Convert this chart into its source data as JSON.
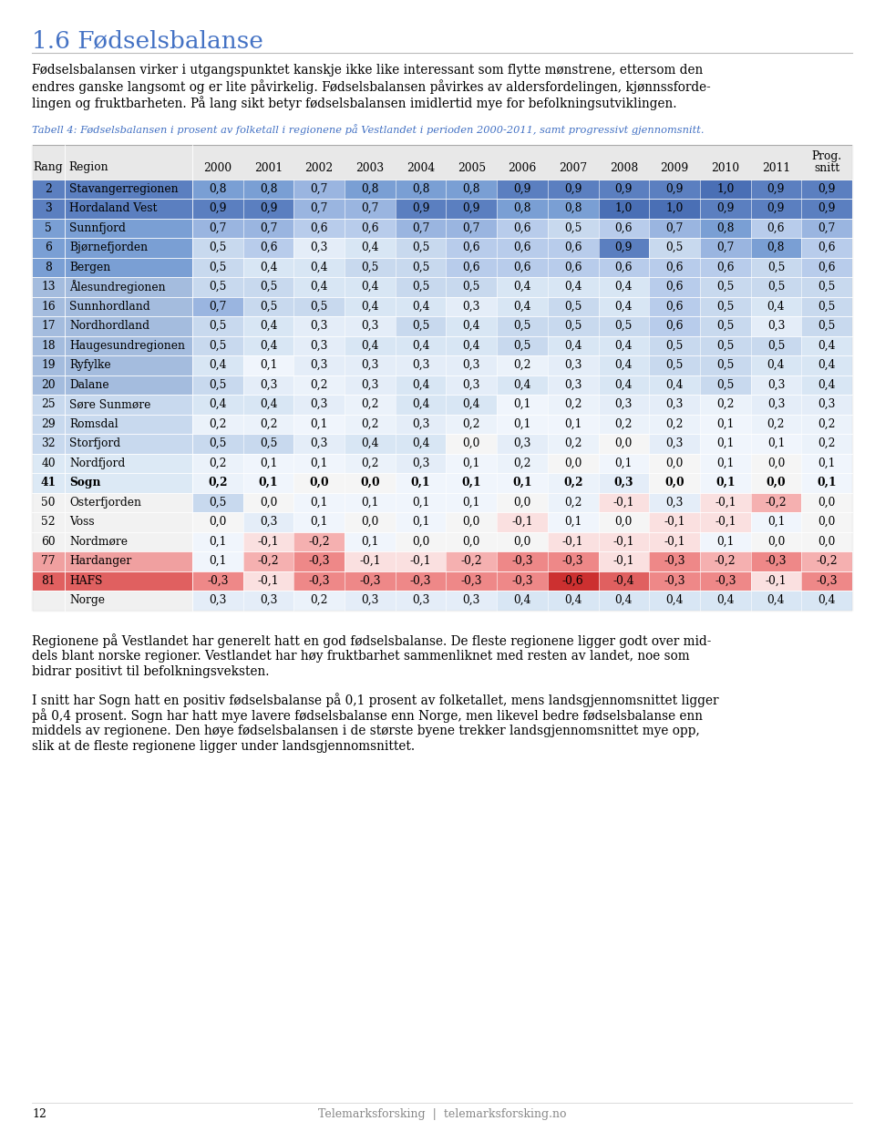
{
  "title": "1.6 Fødselsbalanse",
  "intro_lines": [
    "Fødselsbalansen virker i utgangspunktet kanskje ikke like interessant som flytte mønstrene, ettersom den",
    "endres ganske langsomt og er lite påvirkelig. Fødselsbalansen påvirkes av aldersfordelingen, kjønnssforde-",
    "lingen og fruktbarheten. På lang sikt betyr fødselsbalansen imidlertid mye for befolkningsutviklingen."
  ],
  "table_caption": "Tabell 4: Fødselsbalansen i prosent av folketall i regionene på Vestlandet i perioden 2000-2011, samt progressivt gjennomsnitt.",
  "rows": [
    {
      "rang": "2",
      "region": "Stavangerregionen",
      "bold": false,
      "values": [
        0.8,
        0.8,
        0.7,
        0.8,
        0.8,
        0.8,
        0.9,
        0.9,
        0.9,
        0.9,
        1.0,
        0.9,
        0.9
      ]
    },
    {
      "rang": "3",
      "region": "Hordaland Vest",
      "bold": false,
      "values": [
        0.9,
        0.9,
        0.7,
        0.7,
        0.9,
        0.9,
        0.8,
        0.8,
        1.0,
        1.0,
        0.9,
        0.9,
        0.9
      ]
    },
    {
      "rang": "5",
      "region": "Sunnfjord",
      "bold": false,
      "values": [
        0.7,
        0.7,
        0.6,
        0.6,
        0.7,
        0.7,
        0.6,
        0.5,
        0.6,
        0.7,
        0.8,
        0.6,
        0.7
      ]
    },
    {
      "rang": "6",
      "region": "Bjørnefjorden",
      "bold": false,
      "values": [
        0.5,
        0.6,
        0.3,
        0.4,
        0.5,
        0.6,
        0.6,
        0.6,
        0.9,
        0.5,
        0.7,
        0.8,
        0.6
      ]
    },
    {
      "rang": "8",
      "region": "Bergen",
      "bold": false,
      "values": [
        0.5,
        0.4,
        0.4,
        0.5,
        0.5,
        0.6,
        0.6,
        0.6,
        0.6,
        0.6,
        0.6,
        0.5,
        0.6
      ]
    },
    {
      "rang": "13",
      "region": "Ålesundregionen",
      "bold": false,
      "values": [
        0.5,
        0.5,
        0.4,
        0.4,
        0.5,
        0.5,
        0.4,
        0.4,
        0.4,
        0.6,
        0.5,
        0.5,
        0.5
      ]
    },
    {
      "rang": "16",
      "region": "Sunnhordland",
      "bold": false,
      "values": [
        0.7,
        0.5,
        0.5,
        0.4,
        0.4,
        0.3,
        0.4,
        0.5,
        0.4,
        0.6,
        0.5,
        0.4,
        0.5
      ]
    },
    {
      "rang": "17",
      "region": "Nordhordland",
      "bold": false,
      "values": [
        0.5,
        0.4,
        0.3,
        0.3,
        0.5,
        0.4,
        0.5,
        0.5,
        0.5,
        0.6,
        0.5,
        0.3,
        0.5
      ]
    },
    {
      "rang": "18",
      "region": "Haugesundregionen",
      "bold": false,
      "values": [
        0.5,
        0.4,
        0.3,
        0.4,
        0.4,
        0.4,
        0.5,
        0.4,
        0.4,
        0.5,
        0.5,
        0.5,
        0.4
      ]
    },
    {
      "rang": "19",
      "region": "Ryfylke",
      "bold": false,
      "values": [
        0.4,
        0.1,
        0.3,
        0.3,
        0.3,
        0.3,
        0.2,
        0.3,
        0.4,
        0.5,
        0.5,
        0.4,
        0.4
      ]
    },
    {
      "rang": "20",
      "region": "Dalane",
      "bold": false,
      "values": [
        0.5,
        0.3,
        0.2,
        0.3,
        0.4,
        0.3,
        0.4,
        0.3,
        0.4,
        0.4,
        0.5,
        0.3,
        0.4
      ]
    },
    {
      "rang": "25",
      "region": "Søre Sunmøre",
      "bold": false,
      "values": [
        0.4,
        0.4,
        0.3,
        0.2,
        0.4,
        0.4,
        0.1,
        0.2,
        0.3,
        0.3,
        0.2,
        0.3,
        0.3
      ]
    },
    {
      "rang": "29",
      "region": "Romsdal",
      "bold": false,
      "values": [
        0.2,
        0.2,
        0.1,
        0.2,
        0.3,
        0.2,
        0.1,
        0.1,
        0.2,
        0.2,
        0.1,
        0.2,
        0.2
      ]
    },
    {
      "rang": "32",
      "region": "Storfjord",
      "bold": false,
      "values": [
        0.5,
        0.5,
        0.3,
        0.4,
        0.4,
        0.0,
        0.3,
        0.2,
        0.0,
        0.3,
        0.1,
        0.1,
        0.2
      ]
    },
    {
      "rang": "40",
      "region": "Nordfjord",
      "bold": false,
      "values": [
        0.2,
        0.1,
        0.1,
        0.2,
        0.3,
        0.1,
        0.2,
        0.0,
        0.1,
        0.0,
        0.1,
        0.0,
        0.1
      ]
    },
    {
      "rang": "41",
      "region": "Sogn",
      "bold": true,
      "values": [
        0.2,
        0.1,
        0.0,
        0.0,
        0.1,
        0.1,
        0.1,
        0.2,
        0.3,
        0.0,
        0.1,
        0.0,
        0.1
      ]
    },
    {
      "rang": "50",
      "region": "Osterfjorden",
      "bold": false,
      "values": [
        0.5,
        0.0,
        0.1,
        0.1,
        0.1,
        0.1,
        0.0,
        0.2,
        -0.1,
        0.3,
        -0.1,
        -0.2,
        0.0
      ]
    },
    {
      "rang": "52",
      "region": "Voss",
      "bold": false,
      "values": [
        0.0,
        0.3,
        0.1,
        0.0,
        0.1,
        0.0,
        -0.1,
        0.1,
        0.0,
        -0.1,
        -0.1,
        0.1,
        0.0
      ]
    },
    {
      "rang": "60",
      "region": "Nordmøre",
      "bold": false,
      "values": [
        0.1,
        -0.1,
        -0.2,
        0.1,
        0.0,
        0.0,
        0.0,
        -0.1,
        -0.1,
        -0.1,
        0.1,
        0.0,
        0.0
      ]
    },
    {
      "rang": "77",
      "region": "Hardanger",
      "bold": false,
      "values": [
        0.1,
        -0.2,
        -0.3,
        -0.1,
        -0.1,
        -0.2,
        -0.3,
        -0.3,
        -0.1,
        -0.3,
        -0.2,
        -0.3,
        -0.2
      ]
    },
    {
      "rang": "81",
      "region": "HAFS",
      "bold": false,
      "values": [
        -0.3,
        -0.1,
        -0.3,
        -0.3,
        -0.3,
        -0.3,
        -0.3,
        -0.6,
        -0.4,
        -0.3,
        -0.3,
        -0.1,
        -0.3
      ]
    },
    {
      "rang": "",
      "region": "Norge",
      "bold": false,
      "values": [
        0.3,
        0.3,
        0.2,
        0.3,
        0.3,
        0.3,
        0.4,
        0.4,
        0.4,
        0.4,
        0.4,
        0.4,
        0.4
      ]
    }
  ],
  "footer_para1_lines": [
    "Regionene på Vestlandet har generelt hatt en god fødselsbalanse. De fleste regionene ligger godt over mid-",
    "dels blant norske regioner. Vestlandet har høy fruktbarhet sammenliknet med resten av landet, noe som",
    "bidrar positivt til befolkningsveksten."
  ],
  "footer_para2_lines": [
    "I snitt har Sogn hatt en positiv fødselsbalanse på 0,1 prosent av folketallet, mens landsgjennomsnittet ligger",
    "på 0,4 prosent. Sogn har hatt mye lavere fødselsbalanse enn Norge, men likevel bedre fødselsbalanse enn",
    "middels av regionene. Den høye fødselsbalansen i de største byene trekker landsgjennomsnittet mye opp,",
    "slik at de fleste regionene ligger under landsgjennomsnittet."
  ],
  "page_number": "12",
  "footer_center": "Telemarksforsking  |  telemarksforsking.no",
  "title_color": "#4472C4",
  "caption_color": "#4472C4"
}
